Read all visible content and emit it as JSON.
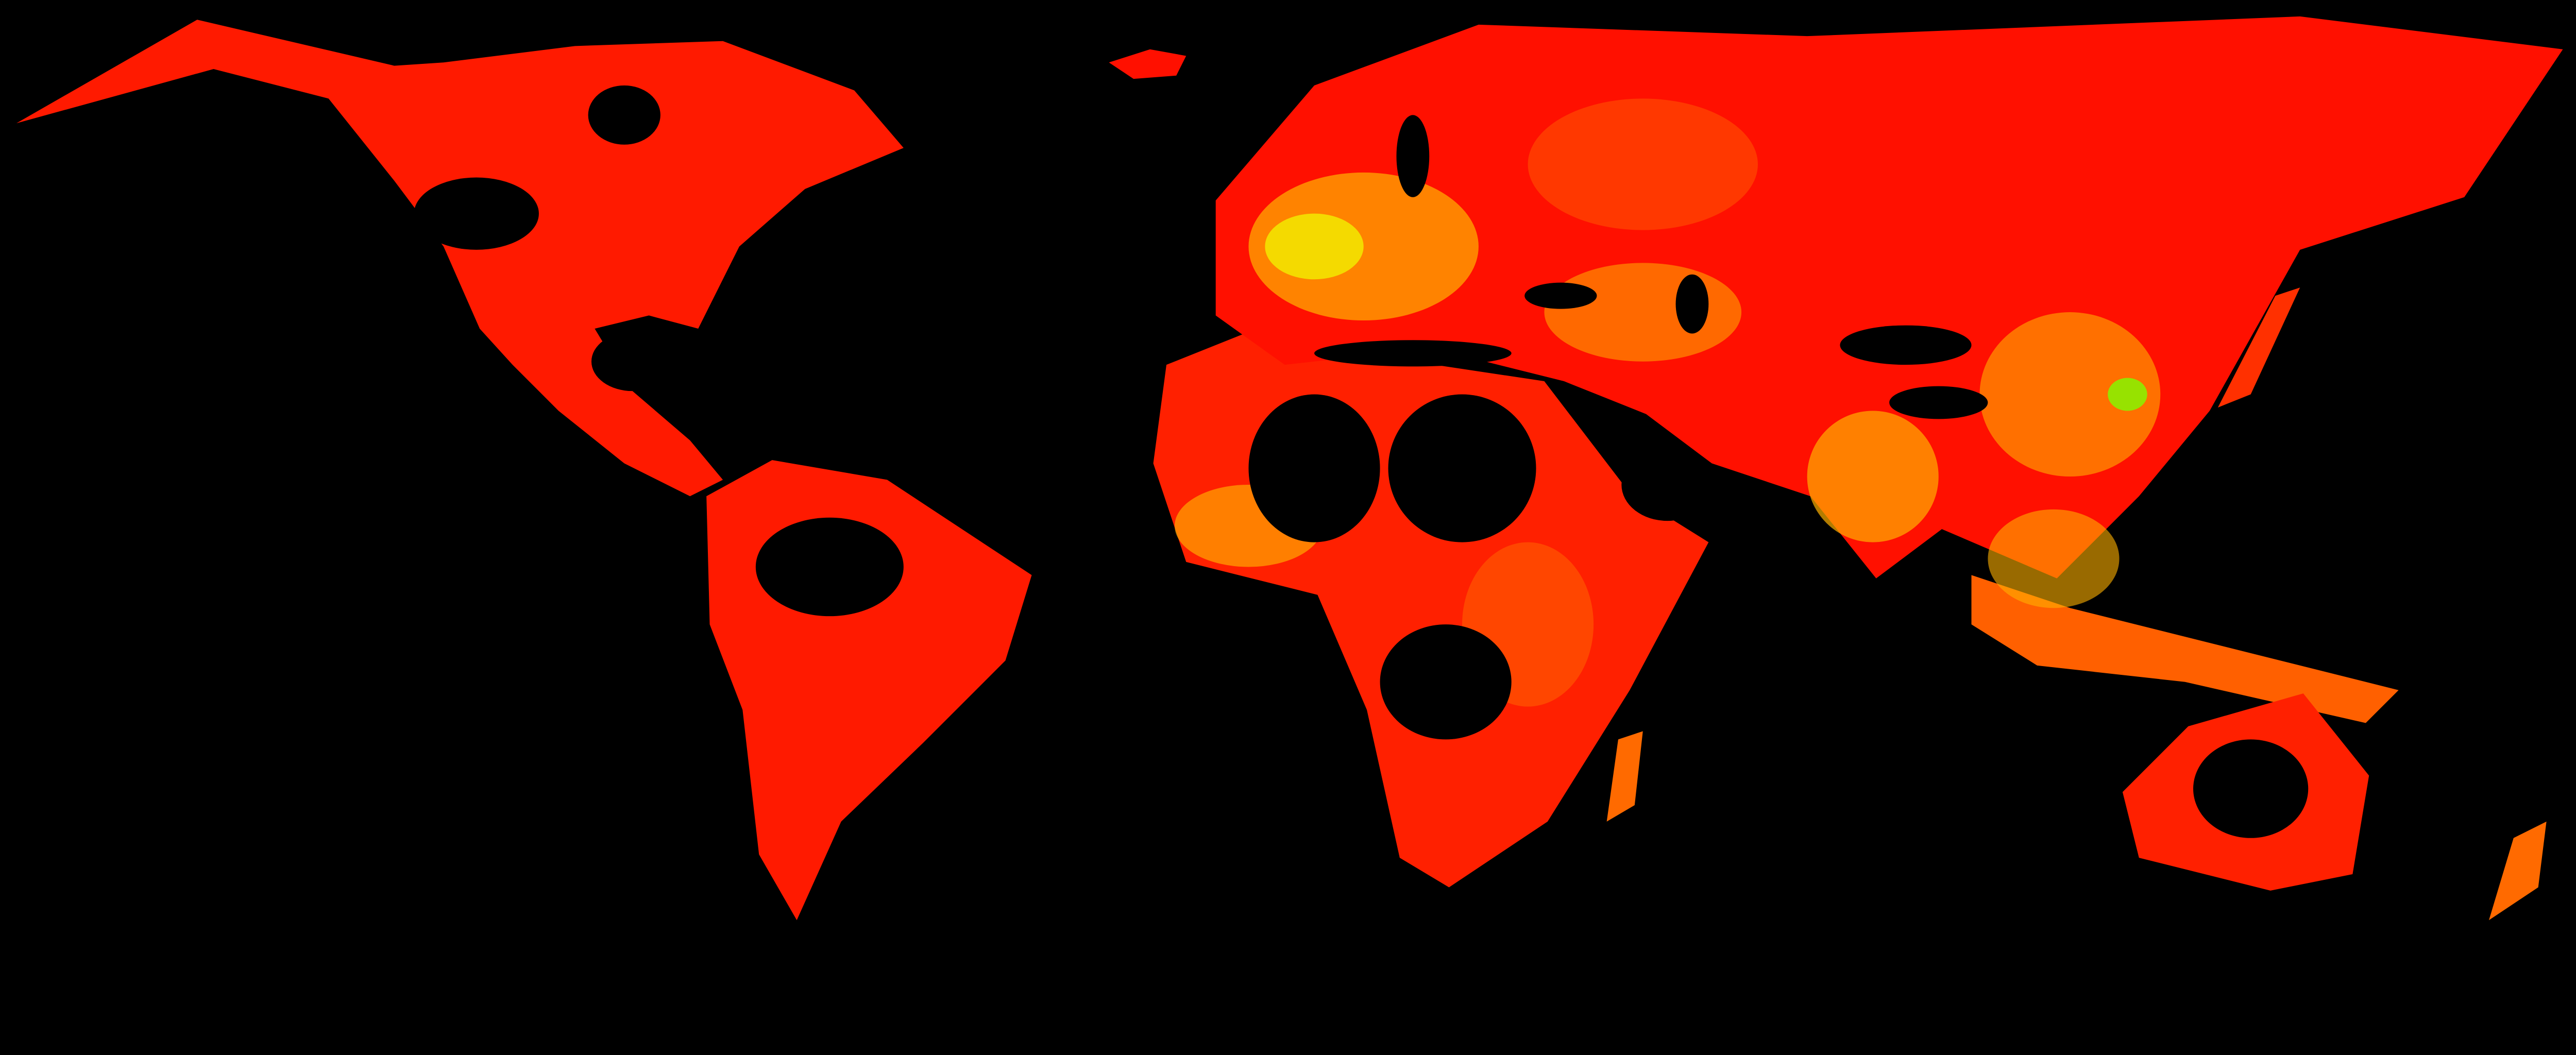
{
  "map": {
    "background_color": "#000000",
    "palette": {
      "high": "#ff0000",
      "mid_high": "#ff4a00",
      "mid": "#ff8a00",
      "mid_low": "#ffc400",
      "low": "#f6ff00",
      "lowest": "#7dff00"
    },
    "regions": [
      "north-america",
      "greenland",
      "south-america",
      "africa",
      "eurasia",
      "australia",
      "madagascar",
      "indonesia",
      "japan",
      "new-zealand"
    ]
  }
}
